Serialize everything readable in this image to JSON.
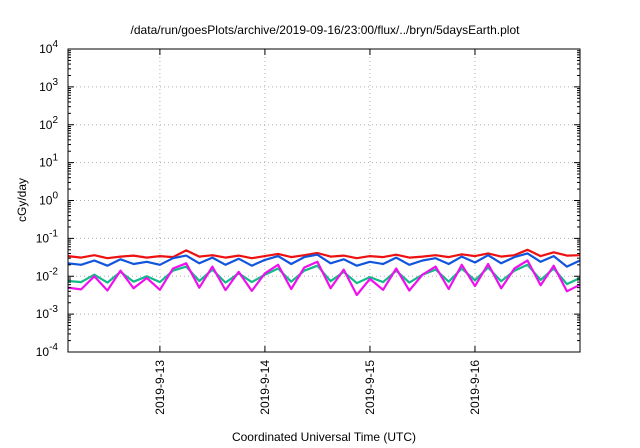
{
  "chart_data": {
    "type": "line",
    "title": "/data/run/goesPlots/archive/2019-09-16/23:00/flux/../bryn/5daysEarth.plot",
    "xlabel": "Coordinated Universal Time (UTC)",
    "ylabel": "cGy/day",
    "yscale": "log",
    "ylim": [
      0.0001,
      10000
    ],
    "xlim": [
      "2019-09-12 03:00",
      "2019-09-17 00:00"
    ],
    "grid": true,
    "y_ticks": [
      {
        "value": 0.0001,
        "base": "10",
        "exp": "-4"
      },
      {
        "value": 0.001,
        "base": "10",
        "exp": "-3"
      },
      {
        "value": 0.01,
        "base": "10",
        "exp": "-2"
      },
      {
        "value": 0.1,
        "base": "10",
        "exp": "-1"
      },
      {
        "value": 1,
        "base": "10",
        "exp": "0"
      },
      {
        "value": 10,
        "base": "10",
        "exp": "1"
      },
      {
        "value": 100,
        "base": "10",
        "exp": "2"
      },
      {
        "value": 1000,
        "base": "10",
        "exp": "3"
      },
      {
        "value": 10000,
        "base": "10",
        "exp": "4"
      }
    ],
    "x_ticks": [
      {
        "x": "2019-09-13 00:00",
        "label": "2019-9-13"
      },
      {
        "x": "2019-09-14 00:00",
        "label": "2019-9-14"
      },
      {
        "x": "2019-09-15 00:00",
        "label": "2019-9-15"
      },
      {
        "x": "2019-09-16 00:00",
        "label": "2019-9-16"
      }
    ],
    "series": [
      {
        "color": "#ee1111",
        "x": [
          "2019-09-12 03:00",
          "2019-09-12 06:00",
          "2019-09-12 09:00",
          "2019-09-12 12:00",
          "2019-09-12 15:00",
          "2019-09-12 18:00",
          "2019-09-12 21:00",
          "2019-09-13 00:00",
          "2019-09-13 03:00",
          "2019-09-13 06:00",
          "2019-09-13 09:00",
          "2019-09-13 12:00",
          "2019-09-13 15:00",
          "2019-09-13 18:00",
          "2019-09-13 21:00",
          "2019-09-14 00:00",
          "2019-09-14 03:00",
          "2019-09-14 06:00",
          "2019-09-14 09:00",
          "2019-09-14 12:00",
          "2019-09-14 15:00",
          "2019-09-14 18:00",
          "2019-09-14 21:00",
          "2019-09-15 00:00",
          "2019-09-15 03:00",
          "2019-09-15 06:00",
          "2019-09-15 09:00",
          "2019-09-15 12:00",
          "2019-09-15 15:00",
          "2019-09-15 18:00",
          "2019-09-15 21:00",
          "2019-09-16 00:00",
          "2019-09-16 03:00",
          "2019-09-16 06:00",
          "2019-09-16 09:00",
          "2019-09-16 12:00",
          "2019-09-16 15:00",
          "2019-09-16 18:00",
          "2019-09-16 21:00",
          "2019-09-17 00:00"
        ],
        "values": [
          0.034,
          0.031,
          0.036,
          0.03,
          0.033,
          0.035,
          0.031,
          0.034,
          0.032,
          0.048,
          0.033,
          0.036,
          0.031,
          0.035,
          0.03,
          0.034,
          0.039,
          0.032,
          0.036,
          0.041,
          0.033,
          0.035,
          0.03,
          0.034,
          0.032,
          0.037,
          0.031,
          0.033,
          0.036,
          0.032,
          0.038,
          0.034,
          0.04,
          0.033,
          0.036,
          0.05,
          0.034,
          0.043,
          0.035,
          0.036
        ]
      },
      {
        "color": "#1155dd",
        "x": [
          "2019-09-12 03:00",
          "2019-09-12 06:00",
          "2019-09-12 09:00",
          "2019-09-12 12:00",
          "2019-09-12 15:00",
          "2019-09-12 18:00",
          "2019-09-12 21:00",
          "2019-09-13 00:00",
          "2019-09-13 03:00",
          "2019-09-13 06:00",
          "2019-09-13 09:00",
          "2019-09-13 12:00",
          "2019-09-13 15:00",
          "2019-09-13 18:00",
          "2019-09-13 21:00",
          "2019-09-14 00:00",
          "2019-09-14 03:00",
          "2019-09-14 06:00",
          "2019-09-14 09:00",
          "2019-09-14 12:00",
          "2019-09-14 15:00",
          "2019-09-14 18:00",
          "2019-09-14 21:00",
          "2019-09-15 00:00",
          "2019-09-15 03:00",
          "2019-09-15 06:00",
          "2019-09-15 09:00",
          "2019-09-15 12:00",
          "2019-09-15 15:00",
          "2019-09-15 18:00",
          "2019-09-15 21:00",
          "2019-09-16 00:00",
          "2019-09-16 03:00",
          "2019-09-16 06:00",
          "2019-09-16 09:00",
          "2019-09-16 12:00",
          "2019-09-16 15:00",
          "2019-09-16 18:00",
          "2019-09-16 21:00",
          "2019-09-17 00:00"
        ],
        "values": [
          0.022,
          0.02,
          0.026,
          0.019,
          0.028,
          0.021,
          0.024,
          0.02,
          0.03,
          0.035,
          0.022,
          0.031,
          0.02,
          0.029,
          0.019,
          0.027,
          0.034,
          0.021,
          0.032,
          0.037,
          0.022,
          0.028,
          0.019,
          0.024,
          0.021,
          0.031,
          0.02,
          0.026,
          0.03,
          0.021,
          0.033,
          0.023,
          0.036,
          0.022,
          0.032,
          0.04,
          0.024,
          0.034,
          0.018,
          0.026
        ]
      },
      {
        "color": "#11bb88",
        "x": [
          "2019-09-12 03:00",
          "2019-09-12 06:00",
          "2019-09-12 09:00",
          "2019-09-12 12:00",
          "2019-09-12 15:00",
          "2019-09-12 18:00",
          "2019-09-12 21:00",
          "2019-09-13 00:00",
          "2019-09-13 03:00",
          "2019-09-13 06:00",
          "2019-09-13 09:00",
          "2019-09-13 12:00",
          "2019-09-13 15:00",
          "2019-09-13 18:00",
          "2019-09-13 21:00",
          "2019-09-14 00:00",
          "2019-09-14 03:00",
          "2019-09-14 06:00",
          "2019-09-14 09:00",
          "2019-09-14 12:00",
          "2019-09-14 15:00",
          "2019-09-14 18:00",
          "2019-09-14 21:00",
          "2019-09-15 00:00",
          "2019-09-15 03:00",
          "2019-09-15 06:00",
          "2019-09-15 09:00",
          "2019-09-15 12:00",
          "2019-09-15 15:00",
          "2019-09-15 18:00",
          "2019-09-15 21:00",
          "2019-09-16 00:00",
          "2019-09-16 03:00",
          "2019-09-16 06:00",
          "2019-09-16 09:00",
          "2019-09-16 12:00",
          "2019-09-16 15:00",
          "2019-09-16 18:00",
          "2019-09-16 21:00",
          "2019-09-17 00:00"
        ],
        "values": [
          0.0075,
          0.007,
          0.011,
          0.0068,
          0.013,
          0.0072,
          0.01,
          0.007,
          0.014,
          0.018,
          0.0075,
          0.015,
          0.0068,
          0.012,
          0.007,
          0.011,
          0.016,
          0.0072,
          0.014,
          0.019,
          0.0074,
          0.013,
          0.0066,
          0.0095,
          0.007,
          0.014,
          0.0068,
          0.011,
          0.015,
          0.0072,
          0.016,
          0.0078,
          0.017,
          0.0074,
          0.014,
          0.02,
          0.008,
          0.016,
          0.0062,
          0.009
        ]
      },
      {
        "color": "#ee11ee",
        "x": [
          "2019-09-12 03:00",
          "2019-09-12 06:00",
          "2019-09-12 09:00",
          "2019-09-12 12:00",
          "2019-09-12 15:00",
          "2019-09-12 18:00",
          "2019-09-12 21:00",
          "2019-09-13 00:00",
          "2019-09-13 03:00",
          "2019-09-13 06:00",
          "2019-09-13 09:00",
          "2019-09-13 12:00",
          "2019-09-13 15:00",
          "2019-09-13 18:00",
          "2019-09-13 21:00",
          "2019-09-14 00:00",
          "2019-09-14 03:00",
          "2019-09-14 06:00",
          "2019-09-14 09:00",
          "2019-09-14 12:00",
          "2019-09-14 15:00",
          "2019-09-14 18:00",
          "2019-09-14 21:00",
          "2019-09-15 00:00",
          "2019-09-15 03:00",
          "2019-09-15 06:00",
          "2019-09-15 09:00",
          "2019-09-15 12:00",
          "2019-09-15 15:00",
          "2019-09-15 18:00",
          "2019-09-15 21:00",
          "2019-09-16 00:00",
          "2019-09-16 03:00",
          "2019-09-16 06:00",
          "2019-09-16 09:00",
          "2019-09-16 12:00",
          "2019-09-16 15:00",
          "2019-09-16 18:00",
          "2019-09-16 21:00",
          "2019-09-17 00:00"
        ],
        "values": [
          0.005,
          0.0045,
          0.01,
          0.0042,
          0.014,
          0.0048,
          0.009,
          0.0044,
          0.016,
          0.022,
          0.005,
          0.018,
          0.0043,
          0.013,
          0.0041,
          0.012,
          0.02,
          0.0046,
          0.017,
          0.024,
          0.0048,
          0.015,
          0.0032,
          0.0085,
          0.0044,
          0.016,
          0.0042,
          0.011,
          0.018,
          0.0046,
          0.02,
          0.0055,
          0.021,
          0.0048,
          0.016,
          0.026,
          0.0058,
          0.019,
          0.004,
          0.006
        ]
      }
    ]
  }
}
